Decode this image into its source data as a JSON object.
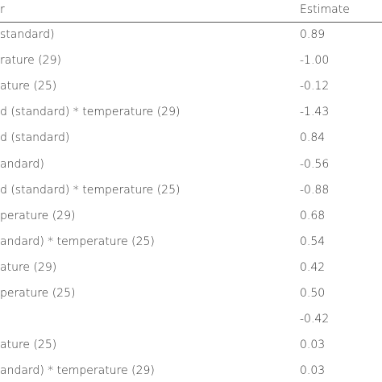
{
  "table": {
    "header": [
      "r",
      "Estimate"
    ],
    "rows": [
      {
        "label": "standard)",
        "estimate": "0.89"
      },
      {
        "label": "rature (29)",
        "estimate": "-1.00"
      },
      {
        "label": "ature (25)",
        "estimate": "-0.12"
      },
      {
        "label": "d (standard) * temperature (29)",
        "estimate": "-1.43"
      },
      {
        "label": "d (standard)",
        "estimate": "0.84"
      },
      {
        "label": "andard)",
        "estimate": "-0.56"
      },
      {
        "label": "d (standard) * temperature (25)",
        "estimate": "-0.88"
      },
      {
        "label": "perature (29)",
        "estimate": "0.68"
      },
      {
        "label": "andard) * temperature (25)",
        "estimate": "0.54"
      },
      {
        "label": "ature (29)",
        "estimate": "0.42"
      },
      {
        "label": "perature (25)",
        "estimate": "0.50"
      },
      {
        "estimate": "-0.42"
      },
      {
        "label": "ature (25)",
        "estimate": "0.03"
      },
      {
        "label": "andard) * temperature (29)",
        "estimate": "0.03"
      }
    ]
  }
}
